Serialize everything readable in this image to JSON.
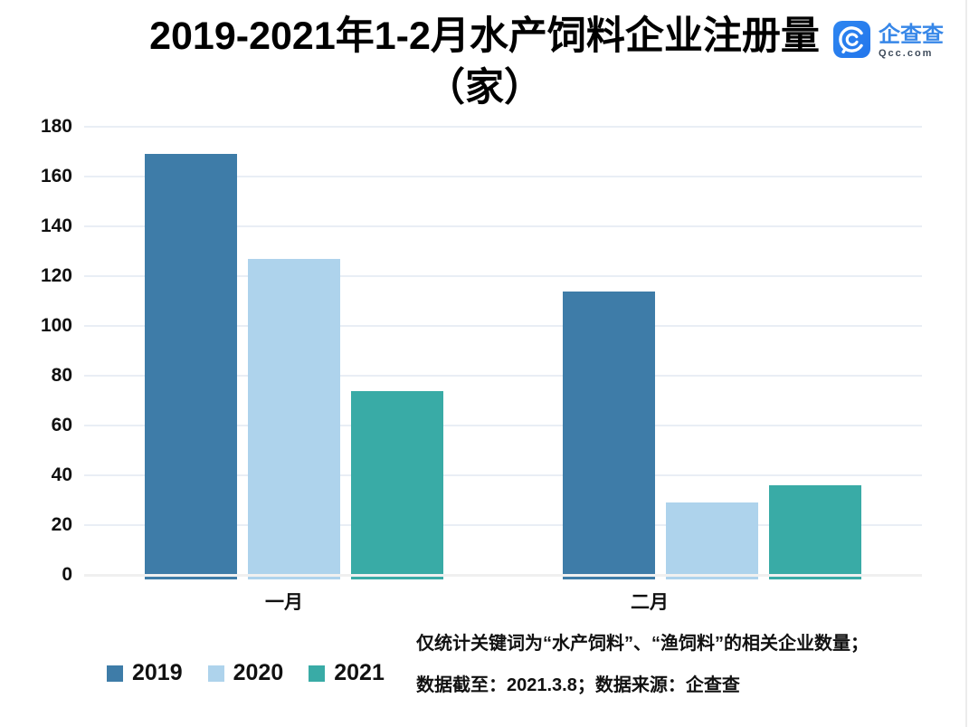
{
  "title": {
    "line1": "2019-2021年1-2月水产饲料企业注册量",
    "line2": "（家）"
  },
  "logo": {
    "name": "企查查",
    "domain": "Qcc.com",
    "icon_bg": "#2e86f0",
    "name_color": "#3787e8",
    "domain_color": "#3d4a5a"
  },
  "chart_data": {
    "type": "bar",
    "title": "2019-2021年1-2月水产饲料企业注册量（家）",
    "categories": [
      "一月",
      "二月"
    ],
    "series": [
      {
        "name": "2019",
        "color": "#3e7ca8",
        "values": [
          169,
          114
        ]
      },
      {
        "name": "2020",
        "color": "#aed3ec",
        "values": [
          127,
          29
        ]
      },
      {
        "name": "2021",
        "color": "#39aba6",
        "values": [
          74,
          36
        ]
      }
    ],
    "ylim": [
      0,
      180
    ],
    "ytick_step": 20,
    "grid": true,
    "gridline_color": "#e9eef5",
    "legend_position": "bottom-left"
  },
  "footnote": {
    "line1": "仅统计关键词为“水产饲料”、“渔饲料”的相关企业数量；",
    "line2": "数据截至：2021.3.8；数据来源：企查查"
  }
}
